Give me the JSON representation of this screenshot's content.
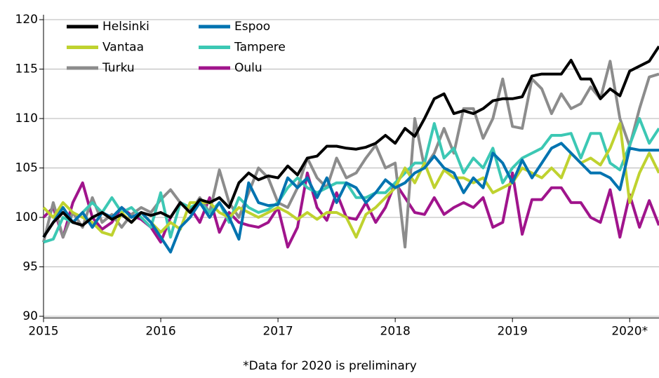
{
  "chart_data": {
    "type": "line",
    "note": "*Data for 2020 is preliminary",
    "categories": [
      "2015",
      null,
      null,
      null,
      null,
      null,
      null,
      null,
      null,
      null,
      null,
      null,
      "2016",
      null,
      null,
      null,
      null,
      null,
      null,
      null,
      null,
      null,
      null,
      null,
      "2017",
      null,
      null,
      null,
      null,
      null,
      null,
      null,
      null,
      null,
      null,
      null,
      "2018",
      null,
      null,
      null,
      null,
      null,
      null,
      null,
      null,
      null,
      null,
      null,
      "2019",
      null,
      null,
      null,
      null,
      null,
      null,
      null,
      null,
      null,
      null,
      null,
      "2020*",
      null,
      null,
      null
    ],
    "ylim": [
      89.9,
      120.5
    ],
    "yticks": [
      90,
      95,
      100,
      105,
      110,
      115,
      120
    ],
    "grid": true,
    "legend": "top-left",
    "series": [
      {
        "name": "Helsinki",
        "color": "#000000",
        "values": [
          98,
          99.5,
          100.5,
          99.5,
          99.2,
          100,
          100.5,
          99.8,
          100.3,
          99.5,
          100.5,
          100.2,
          100.5,
          100,
          101.5,
          100.5,
          101.8,
          101.5,
          102,
          101,
          103.5,
          104.5,
          103.8,
          104.2,
          104,
          105.2,
          104.3,
          106,
          106.2,
          107.2,
          107.2,
          107,
          106.9,
          107.1,
          107.5,
          108.3,
          107.5,
          109,
          108.2,
          110,
          112,
          112.5,
          110.5,
          110.8,
          110.5,
          111,
          111.8,
          112,
          112,
          112.2,
          114.3,
          114.5,
          114.5,
          114.5,
          115.9,
          114,
          114,
          112,
          113,
          112.3,
          114.8,
          115.3,
          115.8,
          117.3
        ]
      },
      {
        "name": "Espoo",
        "color": "#0073b0",
        "values": [
          98,
          99.5,
          101,
          99.5,
          100.5,
          99,
          100.5,
          100,
          101,
          100,
          100.5,
          99.5,
          98,
          96.5,
          99,
          100,
          101.5,
          100,
          101.5,
          100,
          97.8,
          103.5,
          101.5,
          101.2,
          101.3,
          104,
          103,
          104,
          102,
          104,
          101.5,
          103.5,
          103,
          101.5,
          102.5,
          103.8,
          103,
          103.5,
          104.5,
          105,
          106.2,
          105,
          104.5,
          102.5,
          104,
          103,
          106.5,
          105.5,
          103.5,
          105.8,
          104,
          105.5,
          107,
          107.5,
          106.5,
          105.5,
          104.5,
          104.5,
          104,
          102.8,
          107,
          106.8,
          106.8,
          106.8
        ]
      },
      {
        "name": "Vantaa",
        "color": "#bfd22f",
        "values": [
          101,
          100,
          101.5,
          100.5,
          100,
          99.5,
          98.5,
          98.2,
          100.5,
          99.5,
          100.5,
          99.5,
          98.5,
          99.5,
          98.8,
          101.5,
          101.5,
          101.5,
          100.5,
          100,
          101,
          100.5,
          100,
          100.5,
          101,
          100.5,
          99.8,
          100.5,
          99.8,
          100.5,
          100.5,
          100,
          98,
          100.3,
          101,
          102,
          103,
          105,
          103.5,
          105.5,
          103,
          104.8,
          104,
          104,
          103.5,
          104,
          102.5,
          103,
          103.5,
          105,
          104.5,
          104,
          105,
          104,
          106.5,
          105.5,
          106,
          105.3,
          107,
          109.5,
          101.5,
          104.5,
          106.5,
          104.5
        ]
      },
      {
        "name": "Tampere",
        "color": "#3cc8b4",
        "values": [
          97.5,
          97.8,
          100,
          99.5,
          100.5,
          101.5,
          100.5,
          102,
          100.5,
          101,
          100,
          99,
          102.5,
          98,
          101.5,
          101,
          101.5,
          100.5,
          101.5,
          99.5,
          102,
          101,
          100.5,
          100.8,
          101.5,
          103,
          104,
          103,
          102.5,
          103,
          103.5,
          103.5,
          102,
          102,
          102.5,
          102.5,
          103.5,
          104.5,
          105.5,
          105.5,
          109.5,
          106,
          107,
          104.5,
          106,
          105,
          107,
          103.5,
          105,
          106,
          106.5,
          107,
          108.3,
          108.3,
          108.5,
          106,
          108.5,
          108.5,
          105.5,
          104.8,
          107.3,
          110,
          107.5,
          109
        ]
      },
      {
        "name": "Turku",
        "color": "#8c8c8c",
        "values": [
          97.5,
          101.5,
          98,
          100.5,
          99,
          102,
          99.5,
          100.3,
          99,
          100.3,
          101,
          100.5,
          101.8,
          102.8,
          101.5,
          100.5,
          102,
          100.5,
          104.8,
          101.5,
          100,
          102.5,
          105,
          104,
          101.5,
          101,
          103,
          106,
          104,
          103,
          106,
          104,
          104.5,
          106,
          107.3,
          105,
          105.5,
          97,
          110,
          105,
          106.5,
          109,
          106.5,
          111,
          111,
          108,
          110,
          114,
          109.2,
          109,
          114,
          113,
          110.5,
          112.5,
          111,
          111.5,
          113.2,
          112,
          115.8,
          110,
          107.2,
          111,
          114.2,
          114.5
        ]
      },
      {
        "name": "Oulu",
        "color": "#a0148c",
        "values": [
          100,
          101,
          98,
          101.5,
          103.5,
          100,
          98.8,
          99.5,
          101,
          100.2,
          99.8,
          99,
          97.5,
          100,
          101.5,
          101,
          99.5,
          102,
          98.5,
          100.5,
          99.5,
          99.2,
          99,
          99.5,
          101,
          97,
          99,
          104.5,
          101,
          99.7,
          102.5,
          100,
          99.8,
          101.5,
          99.5,
          101,
          103.5,
          102,
          100.5,
          100.3,
          102,
          100.3,
          101,
          101.5,
          101,
          102,
          99,
          99.5,
          104.5,
          98.3,
          101.8,
          101.8,
          103,
          103,
          101.5,
          101.5,
          100,
          99.5,
          102.8,
          98,
          102.3,
          99,
          101.7,
          99.2
        ]
      }
    ]
  }
}
